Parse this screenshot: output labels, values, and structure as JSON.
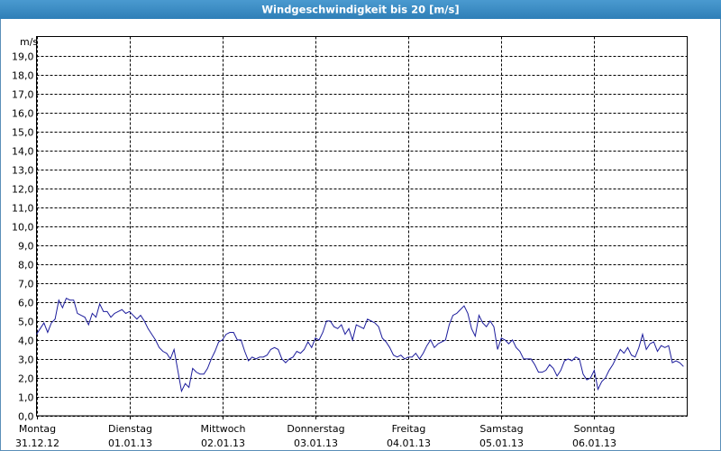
{
  "chart_data": {
    "type": "line",
    "title": "Windgeschwindigkeit bis 20 [m/s]",
    "y_label": "m/s",
    "color": "#1c1c9c",
    "grid": true,
    "ylim": [
      0,
      20
    ],
    "yticks": [
      {
        "value": 0,
        "label": "0,0"
      },
      {
        "value": 1,
        "label": "1,0"
      },
      {
        "value": 2,
        "label": "2,0"
      },
      {
        "value": 3,
        "label": "3,0"
      },
      {
        "value": 4,
        "label": "4,0"
      },
      {
        "value": 5,
        "label": "5,0"
      },
      {
        "value": 6,
        "label": "6,0"
      },
      {
        "value": 7,
        "label": "7,0"
      },
      {
        "value": 8,
        "label": "8,0"
      },
      {
        "value": 9,
        "label": "9,0"
      },
      {
        "value": 10,
        "label": "10,0"
      },
      {
        "value": 11,
        "label": "11,0"
      },
      {
        "value": 12,
        "label": "12,0"
      },
      {
        "value": 13,
        "label": "13,0"
      },
      {
        "value": 14,
        "label": "14,0"
      },
      {
        "value": 15,
        "label": "15,0"
      },
      {
        "value": 16,
        "label": "16,0"
      },
      {
        "value": 17,
        "label": "17,0"
      },
      {
        "value": 18,
        "label": "18,0"
      },
      {
        "value": 19,
        "label": "19,0"
      }
    ],
    "xlim": [
      0,
      7
    ],
    "xticks": [
      {
        "value": 0,
        "label": "Montag",
        "date": "31.12.12"
      },
      {
        "value": 1,
        "label": "Dienstag",
        "date": "01.01.13"
      },
      {
        "value": 2,
        "label": "Mittwoch",
        "date": "02.01.13"
      },
      {
        "value": 3,
        "label": "Donnerstag",
        "date": "03.01.13"
      },
      {
        "value": 4,
        "label": "Freitag",
        "date": "04.01.13"
      },
      {
        "value": 5,
        "label": "Samstag",
        "date": "05.01.13"
      },
      {
        "value": 6,
        "label": "Sonntag",
        "date": "06.01.13"
      }
    ],
    "x": [
      0,
      0.04,
      0.08,
      0.12,
      0.16,
      0.2,
      0.24,
      0.28,
      0.32,
      0.36,
      0.4,
      0.44,
      0.48,
      0.52,
      0.56,
      0.6,
      0.64,
      0.68,
      0.72,
      0.76,
      0.8,
      0.84,
      0.88,
      0.92,
      0.96,
      1,
      1.04,
      1.08,
      1.12,
      1.16,
      1.2,
      1.24,
      1.28,
      1.32,
      1.36,
      1.4,
      1.44,
      1.48,
      1.52,
      1.56,
      1.6,
      1.64,
      1.68,
      1.72,
      1.76,
      1.8,
      1.84,
      1.88,
      1.92,
      1.96,
      2,
      2.04,
      2.08,
      2.12,
      2.16,
      2.2,
      2.24,
      2.28,
      2.32,
      2.36,
      2.4,
      2.44,
      2.48,
      2.52,
      2.56,
      2.6,
      2.64,
      2.68,
      2.72,
      2.76,
      2.8,
      2.84,
      2.88,
      2.92,
      2.96,
      3,
      3.04,
      3.08,
      3.12,
      3.16,
      3.2,
      3.24,
      3.28,
      3.32,
      3.36,
      3.4,
      3.44,
      3.48,
      3.52,
      3.56,
      3.6,
      3.64,
      3.68,
      3.72,
      3.76,
      3.8,
      3.84,
      3.88,
      3.92,
      3.96,
      4,
      4.04,
      4.08,
      4.12,
      4.16,
      4.2,
      4.24,
      4.28,
      4.32,
      4.36,
      4.4,
      4.44,
      4.48,
      4.52,
      4.56,
      4.6,
      4.64,
      4.68,
      4.72,
      4.76,
      4.8,
      4.84,
      4.88,
      4.92,
      4.96,
      5,
      5.04,
      5.08,
      5.12,
      5.16,
      5.2,
      5.24,
      5.28,
      5.32,
      5.36,
      5.4,
      5.44,
      5.48,
      5.52,
      5.56,
      5.6,
      5.64,
      5.68,
      5.72,
      5.76,
      5.8,
      5.84,
      5.88,
      5.92,
      5.96,
      6,
      6.04,
      6.08,
      6.12,
      6.16,
      6.2,
      6.24,
      6.28,
      6.32,
      6.36,
      6.4,
      6.44,
      6.48,
      6.52,
      6.56,
      6.6,
      6.64,
      6.68,
      6.72,
      6.76,
      6.8,
      6.84,
      6.88,
      6.92,
      6.96
    ],
    "values": [
      4.3,
      4.6,
      4.9,
      4.4,
      4.9,
      5.1,
      6.1,
      5.7,
      6.2,
      6.1,
      6.1,
      5.4,
      5.3,
      5.2,
      4.8,
      5.4,
      5.2,
      5.9,
      5.5,
      5.5,
      5.2,
      5.4,
      5.5,
      5.6,
      5.4,
      5.5,
      5.3,
      5.1,
      5.3,
      5.0,
      4.6,
      4.3,
      4.0,
      3.6,
      3.4,
      3.3,
      3.0,
      3.5,
      2.4,
      1.3,
      1.7,
      1.5,
      2.5,
      2.3,
      2.2,
      2.2,
      2.5,
      3.0,
      3.4,
      3.9,
      4.0,
      4.3,
      4.4,
      4.4,
      4.0,
      4.0,
      3.4,
      2.9,
      3.1,
      3.0,
      3.1,
      3.1,
      3.2,
      3.5,
      3.6,
      3.5,
      3.0,
      2.8,
      3.0,
      3.1,
      3.4,
      3.3,
      3.5,
      3.9,
      3.6,
      4.1,
      4.0,
      4.4,
      5.0,
      5.0,
      4.7,
      4.6,
      4.8,
      4.3,
      4.6,
      4.0,
      4.8,
      4.7,
      4.6,
      5.1,
      5.0,
      4.9,
      4.7,
      4.1,
      3.9,
      3.6,
      3.2,
      3.1,
      3.2,
      3.0,
      3.1,
      3.1,
      3.3,
      3.0,
      3.3,
      3.7,
      4.0,
      3.6,
      3.8,
      3.9,
      4.0,
      4.8,
      5.3,
      5.4,
      5.6,
      5.8,
      5.4,
      4.6,
      4.2,
      5.3,
      4.9,
      4.7,
      5.0,
      4.7,
      3.5,
      4.1,
      4.0,
      3.8,
      4.0,
      3.6,
      3.4,
      3.0,
      3.0,
      3.0,
      2.7,
      2.3,
      2.3,
      2.4,
      2.7,
      2.5,
      2.1,
      2.4,
      2.9,
      3.0,
      2.9,
      3.1,
      3.0,
      2.2,
      1.9,
      2.0,
      2.4,
      1.4,
      1.8,
      2.0,
      2.4,
      2.7,
      3.1,
      3.5,
      3.3,
      3.6,
      3.2,
      3.1,
      3.6,
      4.3,
      3.5,
      3.8,
      3.9,
      3.4,
      3.7,
      3.6,
      3.7,
      2.8,
      2.9,
      2.8,
      2.6
    ]
  }
}
